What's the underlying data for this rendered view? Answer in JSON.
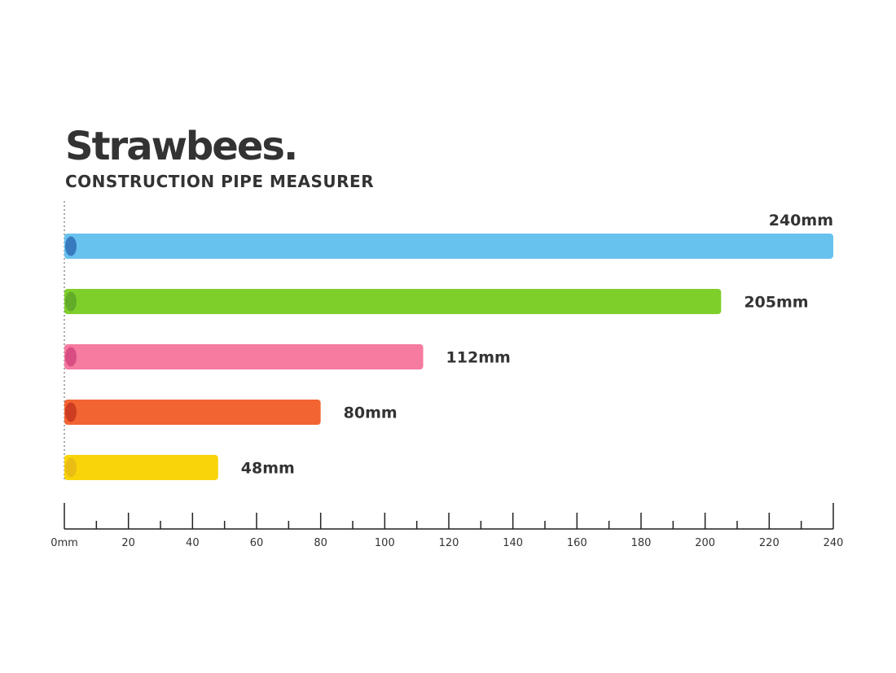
{
  "header": {
    "brand": "Strawbees.",
    "subtitle": "CONSTRUCTION PIPE MEASURER"
  },
  "chart_data": {
    "type": "bar",
    "orientation": "horizontal",
    "title": "",
    "xlabel": "",
    "ylabel": "",
    "xlim": [
      0,
      240
    ],
    "grid": false,
    "legend": "none",
    "categories": [
      "240mm",
      "205mm",
      "112mm",
      "80mm",
      "48mm"
    ],
    "values": [
      240,
      205,
      112,
      80,
      48
    ],
    "data_labels": [
      "240mm",
      "205mm",
      "112mm",
      "80mm",
      "48mm"
    ],
    "colors": [
      "#67c2ee",
      "#7fcf2b",
      "#f57ba0",
      "#f26532",
      "#f9d40a"
    ],
    "end_colors": [
      "#2f6db5",
      "#5ea62a",
      "#d4477c",
      "#c7361f",
      "#e8b816"
    ],
    "major_ticks": [
      0,
      20,
      40,
      60,
      80,
      100,
      120,
      140,
      160,
      180,
      200,
      220,
      240
    ],
    "tick_labels": [
      "0mm",
      "20",
      "40",
      "60",
      "80",
      "100",
      "120",
      "140",
      "160",
      "180",
      "200",
      "220",
      "240"
    ],
    "minor_ticks": [
      10,
      30,
      50,
      70,
      90,
      110,
      130,
      150,
      170,
      190,
      210,
      230
    ]
  }
}
